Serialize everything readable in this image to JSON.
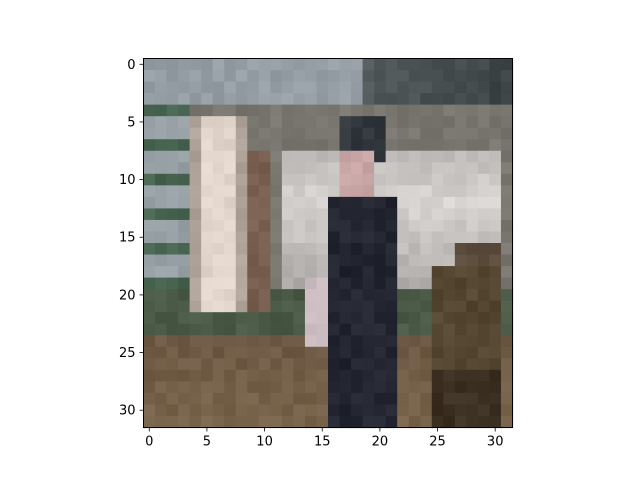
{
  "figure": {
    "description_free": true,
    "x_axis": {
      "ticks": [
        "0",
        "5",
        "10",
        "15",
        "20",
        "25",
        "30"
      ],
      "tick_values": [
        0,
        5,
        10,
        15,
        20,
        25,
        30
      ],
      "range": [
        -0.5,
        31.5
      ]
    },
    "y_axis": {
      "ticks": [
        "0",
        "5",
        "10",
        "15",
        "20",
        "25",
        "30"
      ],
      "tick_values": [
        0,
        5,
        10,
        15,
        20,
        25,
        30
      ],
      "range": [
        -0.5,
        31.5
      ],
      "inverted": true
    },
    "image_grid": {
      "width": 32,
      "height": 32
    }
  }
}
